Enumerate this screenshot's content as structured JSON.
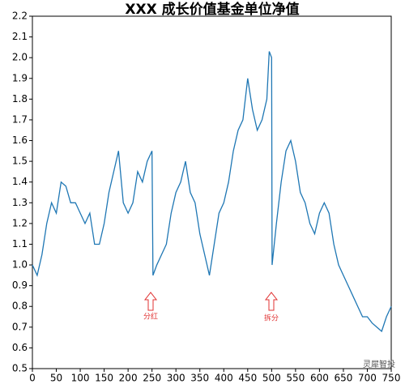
{
  "chart_data": {
    "type": "line",
    "title": "XXX 成长价值基金单位净值",
    "x": [
      0,
      10,
      20,
      30,
      40,
      50,
      60,
      70,
      80,
      90,
      100,
      110,
      120,
      130,
      140,
      150,
      160,
      170,
      180,
      190,
      200,
      210,
      220,
      230,
      240,
      250,
      252,
      260,
      270,
      280,
      290,
      300,
      310,
      320,
      330,
      340,
      350,
      360,
      370,
      380,
      390,
      400,
      410,
      420,
      430,
      440,
      450,
      460,
      470,
      480,
      490,
      495,
      500,
      501,
      510,
      520,
      530,
      540,
      550,
      560,
      570,
      580,
      590,
      600,
      610,
      620,
      630,
      640,
      650,
      660,
      670,
      680,
      690,
      700,
      710,
      720,
      730,
      740,
      750
    ],
    "series": [
      {
        "color": "#1f77b4",
        "values": [
          1.0,
          0.95,
          1.05,
          1.2,
          1.3,
          1.25,
          1.4,
          1.38,
          1.3,
          1.3,
          1.25,
          1.2,
          1.25,
          1.1,
          1.1,
          1.2,
          1.35,
          1.45,
          1.55,
          1.3,
          1.25,
          1.3,
          1.45,
          1.4,
          1.5,
          1.55,
          0.95,
          1.0,
          1.05,
          1.1,
          1.25,
          1.35,
          1.4,
          1.5,
          1.35,
          1.3,
          1.15,
          1.05,
          0.95,
          1.1,
          1.25,
          1.3,
          1.4,
          1.55,
          1.65,
          1.7,
          1.9,
          1.75,
          1.65,
          1.7,
          1.8,
          2.03,
          2.0,
          1.0,
          1.2,
          1.4,
          1.55,
          1.6,
          1.5,
          1.35,
          1.3,
          1.2,
          1.15,
          1.25,
          1.3,
          1.25,
          1.1,
          1.0,
          0.95,
          0.9,
          0.85,
          0.8,
          0.75,
          0.75,
          0.72,
          0.7,
          0.68,
          0.75,
          0.8
        ]
      }
    ],
    "xlim": [
      0,
      750
    ],
    "xticks": [
      0,
      50,
      100,
      150,
      200,
      250,
      300,
      350,
      400,
      450,
      500,
      550,
      600,
      650,
      700,
      750
    ],
    "ylim": [
      0.5,
      2.2
    ],
    "yticks": [
      0.5,
      0.6,
      0.7,
      0.8,
      0.9,
      {
        "value": 1,
        "label": "1.0"
      },
      1.1,
      1.2,
      1.3,
      1.4,
      1.5,
      1.6,
      1.7,
      1.8,
      1.9,
      {
        "value": 2,
        "label": "2.0"
      },
      2.1,
      2.2
    ],
    "annotations": [
      "分红",
      "拆分"
    ],
    "watermark": "灵犀智投"
  }
}
